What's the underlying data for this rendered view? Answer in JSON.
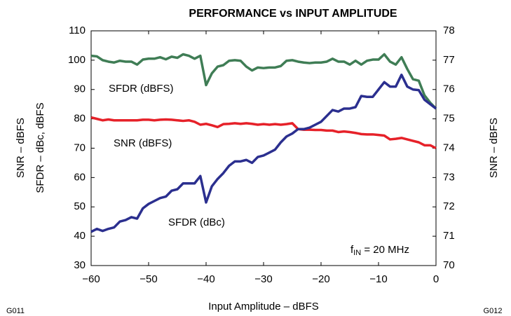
{
  "chart_data": {
    "type": "line",
    "title": "PERFORMANCE vs INPUT AMPLITUDE",
    "x_label": "Input Amplitude – dBFS",
    "y_label": [
      "SNR – dBFS",
      "SFDR – dBc, dBFS"
    ],
    "y2_label": "SNR – dBFS",
    "annotation": {
      "text": "f",
      "subscript": "IN",
      "suffix": " = 20 MHz"
    },
    "footnotes": [
      "G011",
      "G012"
    ],
    "x": [
      -60,
      -59,
      -58,
      -57,
      -56,
      -55,
      -54,
      -53,
      -52,
      -51,
      -50,
      -49,
      -48,
      -47,
      -46,
      -45,
      -44,
      -43,
      -42,
      -41,
      -40,
      -39,
      -38,
      -37,
      -36,
      -35,
      -34,
      -33,
      -32,
      -31,
      -30,
      -29,
      -28,
      -27,
      -26,
      -25,
      -24,
      -23,
      -22,
      -21,
      -20,
      -19,
      -18,
      -17,
      -16,
      -15,
      -14,
      -13,
      -12,
      -11,
      -10,
      -9,
      -8,
      -7,
      -6,
      -5,
      -4,
      -3,
      -2,
      -1,
      0
    ],
    "series": [
      {
        "name": "SFDR (dBFS)",
        "color": "#3f7d55",
        "axis": "y",
        "values": [
          101.5,
          101.3,
          100,
          99.5,
          99.2,
          99.8,
          99.5,
          99.5,
          98.5,
          100.2,
          100.5,
          100.5,
          101,
          100.3,
          101.2,
          100.8,
          102,
          101.5,
          100.5,
          101.5,
          91.5,
          95.5,
          97.8,
          98.3,
          99.8,
          100,
          99.8,
          97.8,
          96.5,
          97.5,
          97.3,
          97.5,
          97.5,
          98,
          99.8,
          100,
          99.5,
          99.2,
          99,
          99.2,
          99.2,
          99.5,
          100.5,
          99.5,
          99.5,
          98.5,
          99.8,
          98.5,
          99.8,
          100.2,
          100.2,
          102,
          99.5,
          98.5,
          101,
          97,
          93.5,
          93,
          88,
          85.5,
          83.5
        ]
      },
      {
        "name": "SNR (dBFS)",
        "color": "#e62129",
        "axis": "y2",
        "values": [
          75.05,
          75.0,
          74.95,
          74.98,
          74.95,
          74.95,
          74.95,
          74.95,
          74.95,
          74.97,
          74.97,
          74.95,
          74.97,
          74.98,
          74.97,
          74.95,
          74.93,
          74.95,
          74.9,
          74.8,
          74.83,
          74.78,
          74.72,
          74.82,
          74.83,
          74.85,
          74.83,
          74.85,
          74.83,
          74.8,
          74.82,
          74.8,
          74.82,
          74.8,
          74.82,
          74.85,
          74.65,
          74.63,
          74.63,
          74.62,
          74.62,
          74.6,
          74.6,
          74.55,
          74.57,
          74.55,
          74.52,
          74.48,
          74.47,
          74.47,
          74.45,
          74.43,
          74.3,
          74.32,
          74.35,
          74.3,
          74.25,
          74.2,
          74.1,
          74.1,
          74.0
        ]
      },
      {
        "name": "SFDR (dBc)",
        "color": "#2b2f8f",
        "axis": "y",
        "values": [
          41.5,
          42.5,
          41.8,
          42.5,
          43,
          45,
          45.5,
          46.5,
          46,
          49.5,
          51,
          52,
          53,
          53.5,
          55.5,
          56,
          58,
          58,
          58,
          60.5,
          51.5,
          57,
          59.5,
          61.5,
          64,
          65.5,
          65.5,
          66,
          65,
          67,
          67.5,
          68.5,
          69.5,
          72,
          74,
          75,
          76.5,
          76.5,
          77,
          78,
          79,
          81,
          83,
          82.5,
          83.5,
          83.5,
          84,
          87.8,
          87.5,
          87.5,
          90,
          92.5,
          91,
          91,
          95,
          91,
          90,
          89.8,
          86.5,
          85,
          83.5
        ]
      }
    ],
    "xlim": [
      -60,
      0
    ],
    "xticks": [
      {
        "value": -60,
        "label": "−60"
      },
      {
        "value": -50,
        "label": "−50"
      },
      {
        "value": -40,
        "label": "−40"
      },
      {
        "value": -30,
        "label": "−30"
      },
      {
        "value": -20,
        "label": "−20"
      },
      {
        "value": -10,
        "label": "−10"
      },
      0
    ],
    "ylim": [
      30,
      110
    ],
    "yticks": [
      30,
      40,
      50,
      60,
      70,
      80,
      90,
      100,
      110
    ],
    "y2lim": [
      70,
      78
    ],
    "y2ticks": [
      70,
      71,
      72,
      73,
      74,
      75,
      76,
      77,
      78
    ],
    "grid": false
  }
}
